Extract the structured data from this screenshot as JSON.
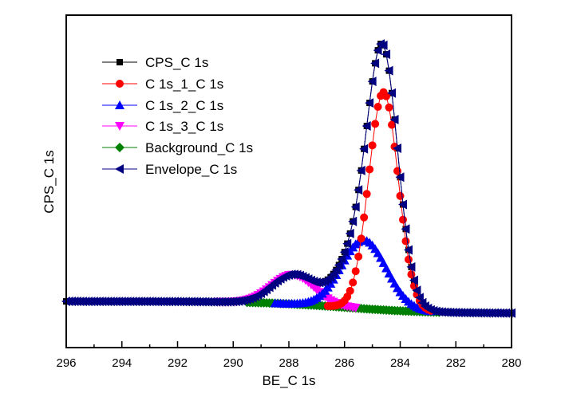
{
  "chart_data": {
    "type": "line",
    "title": "",
    "xlabel": "BE_C 1s",
    "ylabel": "CPS_C 1s",
    "xlim": [
      296,
      280
    ],
    "ylim": [
      0,
      100
    ],
    "x_reversed": true,
    "x_ticks": [
      296,
      294,
      292,
      290,
      288,
      286,
      284,
      282,
      280
    ],
    "x_minor_step": 1,
    "y_ticks_shown": false,
    "grid": false,
    "legend_position": "upper-left",
    "background": {
      "left_value": 13.9,
      "right_value": 10.3,
      "step_center": 286.0,
      "step_width": 1.5
    },
    "peaks": [
      {
        "name": "C 1s_1_C 1s",
        "center": 284.6,
        "height": 65.5,
        "fwhm": 1.25
      },
      {
        "name": "C 1s_2_C 1s",
        "center": 285.3,
        "height": 20.6,
        "fwhm": 1.9
      },
      {
        "name": "C 1s_3_C 1s",
        "center": 287.85,
        "height": 8.8,
        "fwhm": 1.8
      }
    ],
    "series": [
      {
        "name": "CPS_C 1s",
        "color": "#000000",
        "marker": "square"
      },
      {
        "name": "C 1s_1_C 1s",
        "color": "#ff0000",
        "marker": "circle"
      },
      {
        "name": "C 1s_2_C 1s",
        "color": "#0000ff",
        "marker": "triangle-up"
      },
      {
        "name": "C 1s_3_C 1s",
        "color": "#ff00ff",
        "marker": "triangle-down"
      },
      {
        "name": "Background_C 1s",
        "color": "#008000",
        "marker": "diamond"
      },
      {
        "name": "Envelope_C 1s",
        "color": "#000080",
        "marker": "triangle-left"
      }
    ],
    "sample_points": {
      "x": [
        296,
        292,
        290,
        289,
        288,
        287.8,
        287,
        286,
        285.3,
        285,
        284.6,
        284,
        283.5,
        283,
        282,
        280
      ],
      "Envelope_C 1s": [
        13.9,
        13.5,
        14.2,
        16.8,
        22.0,
        22.4,
        18.5,
        25.0,
        42.0,
        60.0,
        89.2,
        47.0,
        18.0,
        11.5,
        10.4,
        10.3
      ]
    }
  },
  "legend": {
    "items": [
      {
        "label": "CPS_C 1s"
      },
      {
        "label": "C 1s_1_C 1s"
      },
      {
        "label": "C 1s_2_C 1s"
      },
      {
        "label": "C 1s_3_C 1s"
      },
      {
        "label": "Background_C 1s"
      },
      {
        "label": "Envelope_C 1s"
      }
    ]
  },
  "axes": {
    "x_title": "BE_C 1s",
    "y_title": "CPS_C 1s",
    "x_tick_labels": [
      "296",
      "294",
      "292",
      "290",
      "288",
      "286",
      "284",
      "282",
      "280"
    ]
  }
}
